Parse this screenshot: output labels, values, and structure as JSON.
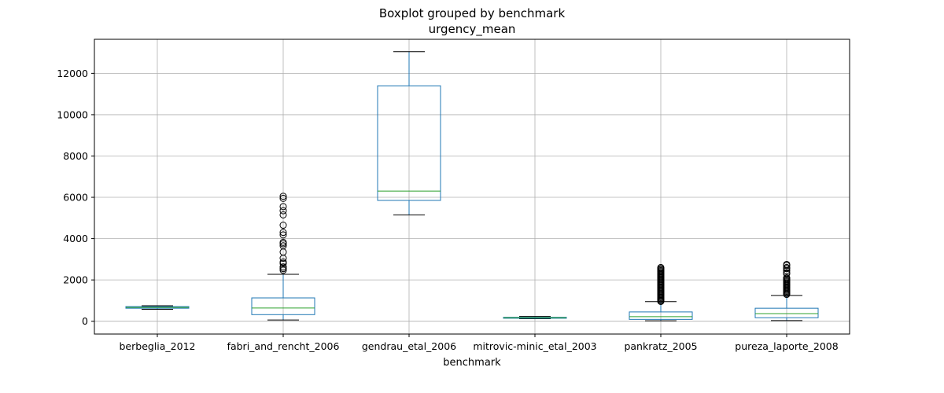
{
  "chart_data": {
    "type": "box",
    "title": "Boxplot grouped by benchmark",
    "subtitle": "urgency_mean",
    "xlabel": "benchmark",
    "ylabel": "",
    "ylim": [
      -620,
      13650
    ],
    "yticks": [
      0,
      2000,
      4000,
      6000,
      8000,
      10000,
      12000
    ],
    "ytick_labels": [
      "0",
      "2000",
      "4000",
      "6000",
      "8000",
      "10000",
      "12000"
    ],
    "grid": true,
    "colors": {
      "box": "#1f77b4",
      "median": "#2ca02c",
      "whisker_cap": "#000000",
      "grid": "#b0b0b0"
    },
    "categories": [
      "berbeglia_2012",
      "fabri_and_rencht_2006",
      "gendrau_etal_2006",
      "mitrovic-minic_etal_2003",
      "pankratz_2005",
      "pureza_laporte_2008"
    ],
    "boxes": [
      {
        "name": "berbeglia_2012",
        "whislo": 580,
        "q1": 630,
        "med": 670,
        "q3": 710,
        "whishi": 750,
        "fliers": []
      },
      {
        "name": "fabri_and_rencht_2006",
        "whislo": 60,
        "q1": 320,
        "med": 640,
        "q3": 1130,
        "whishi": 2270,
        "fliers": [
          2470,
          2550,
          2630,
          2800,
          2870,
          3050,
          3350,
          3650,
          3750,
          3820,
          4180,
          4300,
          4650,
          5150,
          5350,
          5550,
          5950,
          6050
        ]
      },
      {
        "name": "gendrau_etal_2006",
        "whislo": 5150,
        "q1": 5850,
        "med": 6300,
        "q3": 11400,
        "whishi": 13050,
        "fliers": []
      },
      {
        "name": "mitrovic-minic_etal_2003",
        "whislo": 120,
        "q1": 145,
        "med": 170,
        "q3": 190,
        "whishi": 230,
        "fliers": []
      },
      {
        "name": "pankratz_2005",
        "whislo": 20,
        "q1": 90,
        "med": 220,
        "q3": 450,
        "whishi": 950,
        "fliers": [
          960,
          1000,
          1050,
          1100,
          1150,
          1200,
          1250,
          1300,
          1350,
          1400,
          1450,
          1500,
          1550,
          1600,
          1650,
          1700,
          1750,
          1800,
          1850,
          1900,
          1950,
          2000,
          2050,
          2100,
          2150,
          2200,
          2250,
          2300,
          2350,
          2400,
          2450,
          2500,
          2550,
          2600
        ]
      },
      {
        "name": "pureza_laporte_2008",
        "whislo": 30,
        "q1": 170,
        "med": 370,
        "q3": 630,
        "whishi": 1250,
        "fliers": [
          1300,
          1350,
          1400,
          1450,
          1500,
          1550,
          1600,
          1650,
          1700,
          1750,
          1800,
          1850,
          1900,
          1950,
          2000,
          2050,
          2100,
          2300,
          2350,
          2450,
          2550,
          2600,
          2700,
          2750
        ]
      }
    ]
  }
}
